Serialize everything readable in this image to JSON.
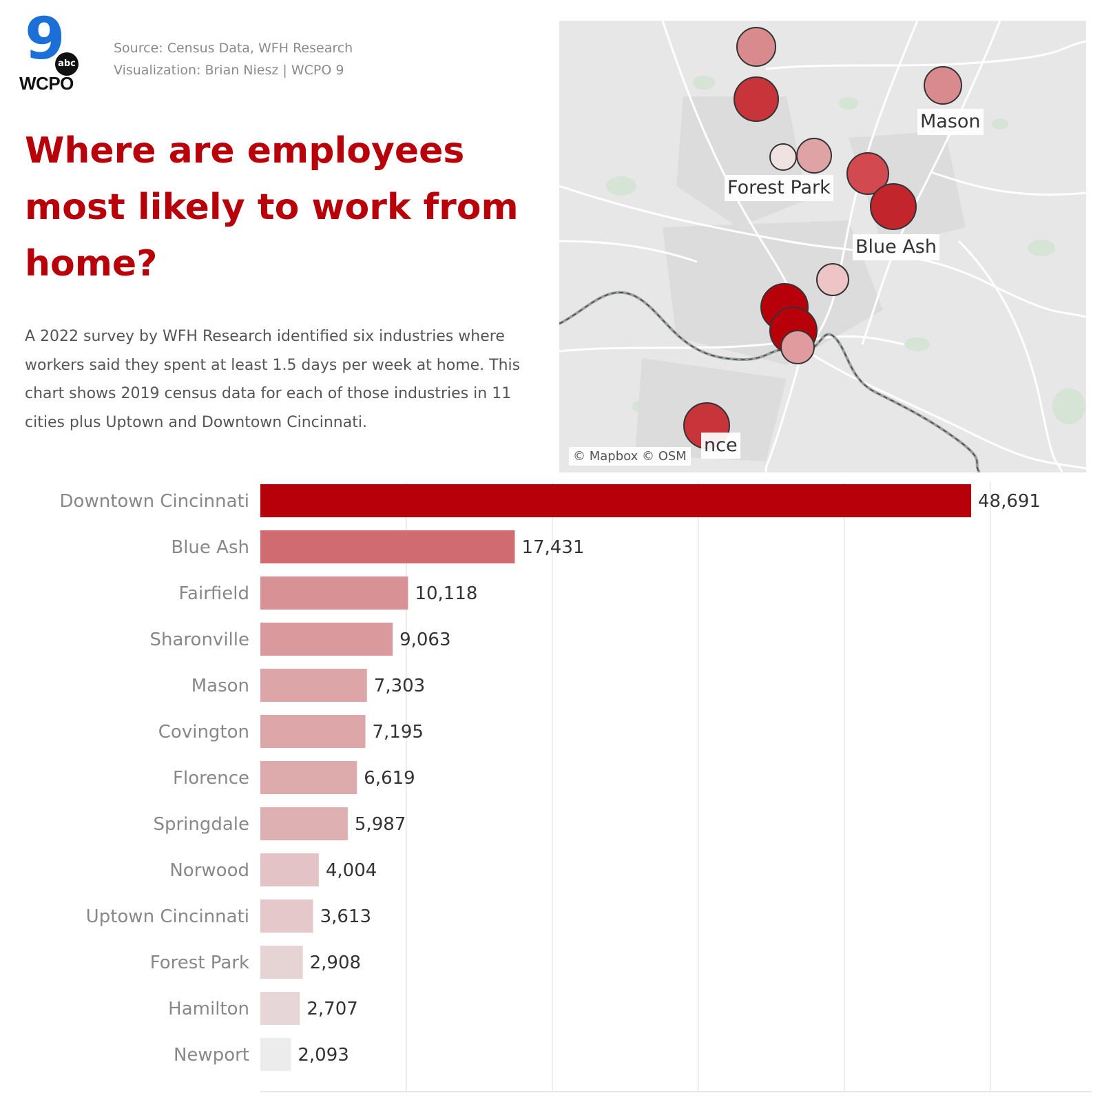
{
  "header": {
    "logo_number": "9",
    "logo_network": "abc",
    "logo_station": "WCPO",
    "source_line": "Source: Census Data, WFH Research",
    "credit_line": "Visualization: Brian Niesz | WCPO 9"
  },
  "headline": "Where are employees most likely to work from home?",
  "description": "A 2022 survey by WFH Research identified six industries where workers said they spent at least 1.5 days per week at home. This chart shows 2019 census data for each of those industries in 11 cities plus Uptown and Downtown Cincinnati.",
  "map": {
    "labels": {
      "mason": "Mason",
      "forest_park": "Forest Park",
      "blue_ash": "Blue Ash",
      "florence_partial": "nce"
    },
    "attribution": "© Mapbox © OSM"
  },
  "chart_data": {
    "type": "bar",
    "orientation": "horizontal",
    "categories": [
      "Downtown Cincinnati",
      "Blue Ash",
      "Fairfield",
      "Sharonville",
      "Mason",
      "Covington",
      "Florence",
      "Springdale",
      "Norwood",
      "Uptown Cincinnati",
      "Forest Park",
      "Hamilton",
      "Newport"
    ],
    "values": [
      48691,
      17431,
      10118,
      9063,
      7303,
      7195,
      6619,
      5987,
      4004,
      3613,
      2908,
      2707,
      2093
    ],
    "value_labels": [
      "48,691",
      "17,431",
      "10,118",
      "9,063",
      "7,303",
      "7,195",
      "6,619",
      "5,987",
      "4,004",
      "3,613",
      "2,908",
      "2,707",
      "2,093"
    ],
    "xlim": [
      0,
      55000
    ],
    "grid": true,
    "color_scale": [
      "#ececec",
      "#b8000a"
    ]
  }
}
